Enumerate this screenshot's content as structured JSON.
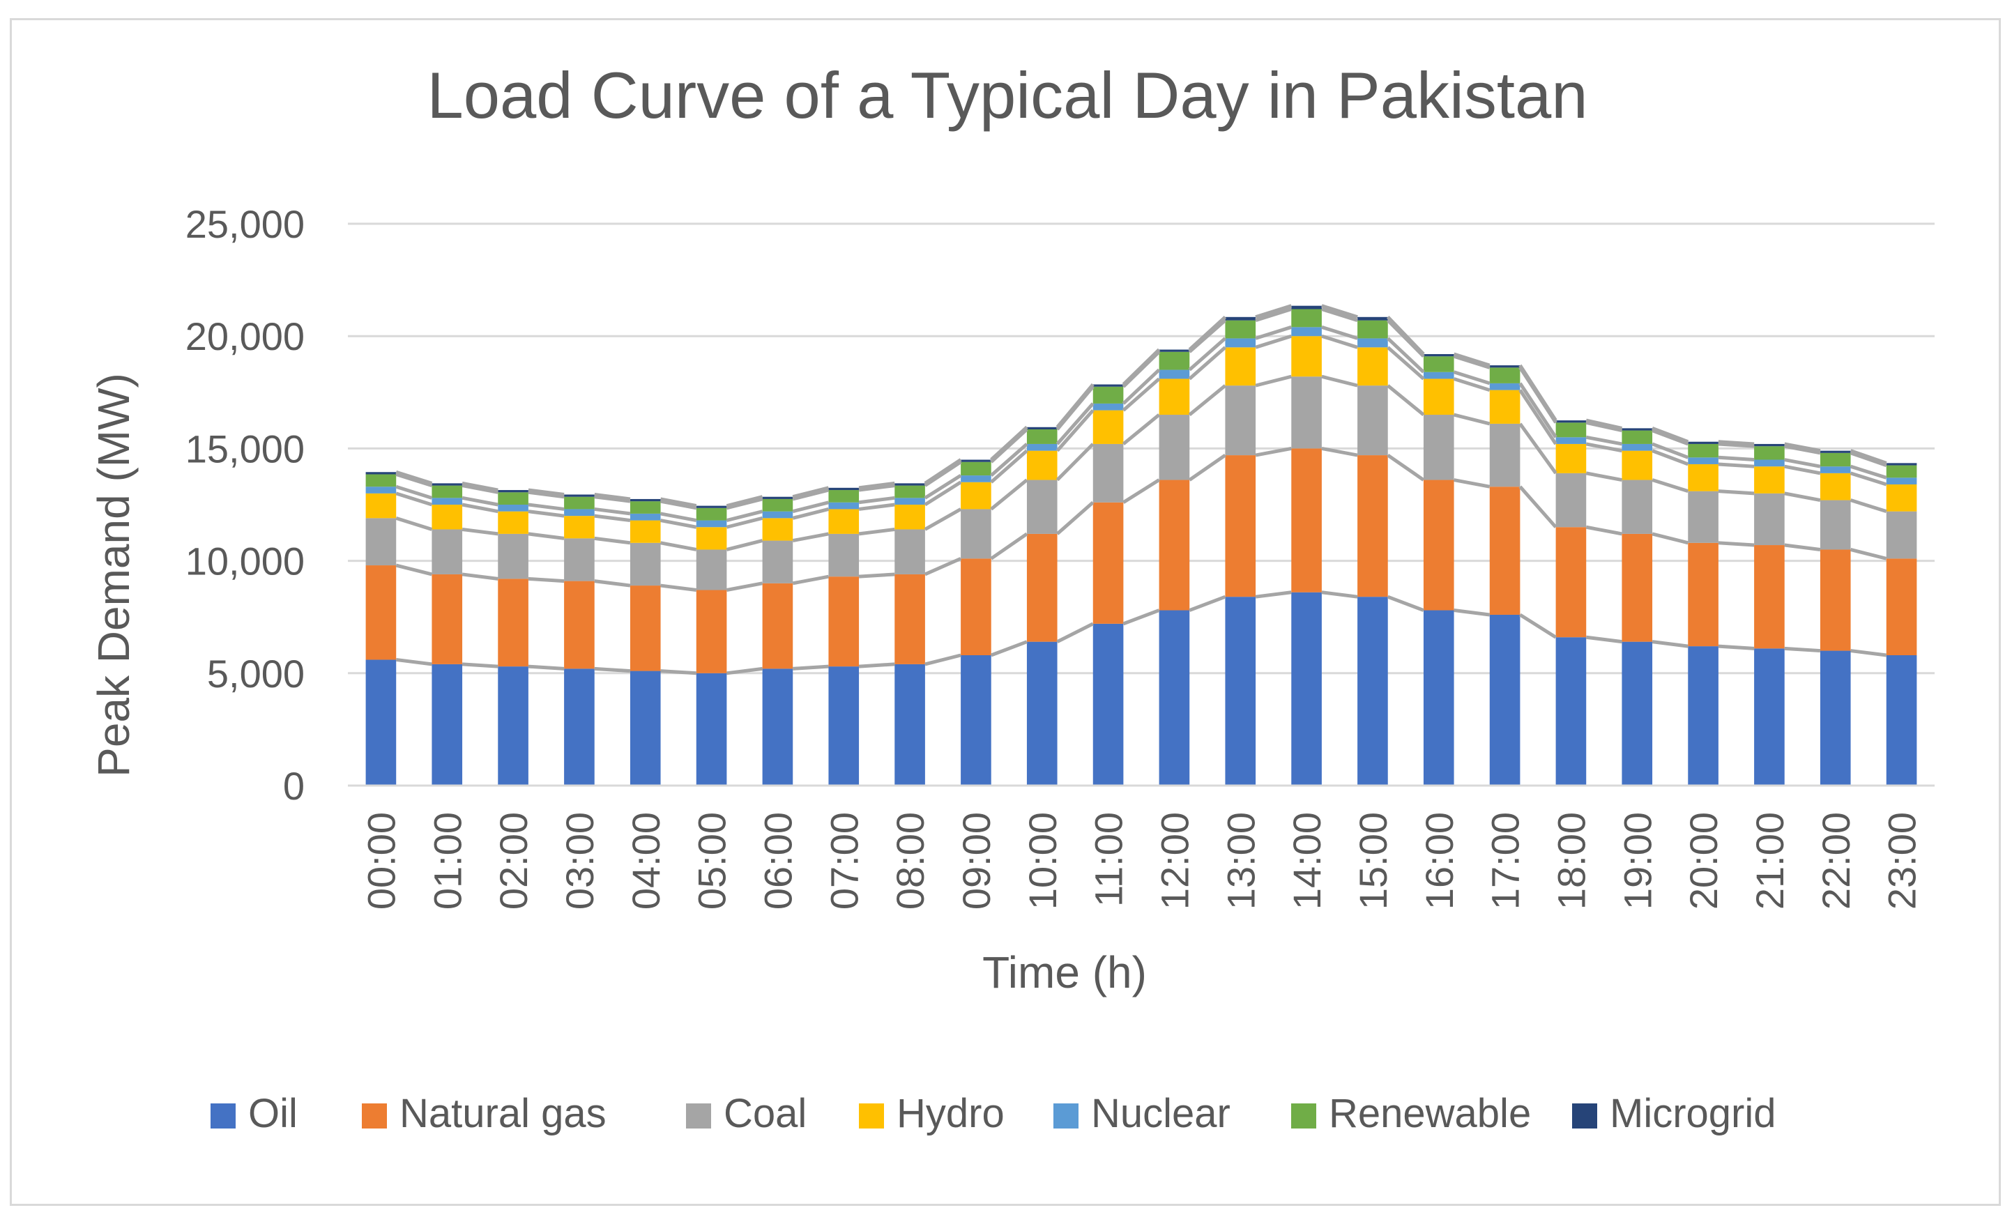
{
  "chart_data": {
    "type": "bar",
    "stacked": true,
    "title": "Load Curve of a Typical Day in Pakistan",
    "xlabel": "Time (h)",
    "ylabel": "Peak Demand (MW)",
    "ylim": [
      0,
      25000
    ],
    "yticks": [
      0,
      5000,
      10000,
      15000,
      20000,
      25000
    ],
    "ytick_labels": [
      "0",
      "5,000",
      "10,000",
      "15,000",
      "20,000",
      "25,000"
    ],
    "grid": true,
    "legend_position": "bottom",
    "categories": [
      "00:00",
      "01:00",
      "02:00",
      "03:00",
      "04:00",
      "05:00",
      "06:00",
      "07:00",
      "08:00",
      "09:00",
      "10:00",
      "11:00",
      "12:00",
      "13:00",
      "14:00",
      "15:00",
      "16:00",
      "17:00",
      "18:00",
      "19:00",
      "20:00",
      "21:00",
      "22:00",
      "23:00"
    ],
    "series": [
      {
        "name": "Oil",
        "color": "#4472c4",
        "values": [
          5600,
          5400,
          5300,
          5200,
          5100,
          5000,
          5200,
          5300,
          5400,
          5800,
          6400,
          7200,
          7800,
          8400,
          8600,
          8400,
          7800,
          7600,
          6600,
          6400,
          6200,
          6100,
          6000,
          5800
        ]
      },
      {
        "name": "Natural gas",
        "color": "#ed7d31",
        "values": [
          4200,
          4000,
          3900,
          3900,
          3800,
          3700,
          3800,
          4000,
          4000,
          4300,
          4800,
          5400,
          5800,
          6300,
          6400,
          6300,
          5800,
          5700,
          4900,
          4800,
          4600,
          4600,
          4500,
          4300
        ]
      },
      {
        "name": "Coal",
        "color": "#a5a5a5",
        "values": [
          2100,
          2000,
          2000,
          1900,
          1900,
          1800,
          1900,
          1900,
          2000,
          2200,
          2400,
          2600,
          2900,
          3100,
          3200,
          3100,
          2900,
          2800,
          2400,
          2400,
          2300,
          2300,
          2200,
          2100
        ]
      },
      {
        "name": "Hydro",
        "color": "#ffc000",
        "values": [
          1100,
          1100,
          1000,
          1000,
          1000,
          1000,
          1000,
          1100,
          1100,
          1200,
          1300,
          1500,
          1600,
          1700,
          1800,
          1700,
          1600,
          1500,
          1300,
          1300,
          1200,
          1200,
          1200,
          1200
        ]
      },
      {
        "name": "Nuclear",
        "color": "#5b9bd5",
        "values": [
          300,
          300,
          300,
          300,
          300,
          300,
          300,
          300,
          300,
          300,
          300,
          300,
          400,
          400,
          400,
          400,
          300,
          300,
          300,
          300,
          300,
          300,
          300,
          300
        ]
      },
      {
        "name": "Renewable",
        "color": "#70ad47",
        "values": [
          550,
          550,
          550,
          550,
          550,
          550,
          550,
          550,
          550,
          600,
          650,
          750,
          800,
          800,
          800,
          800,
          700,
          700,
          650,
          600,
          600,
          600,
          600,
          550
        ]
      },
      {
        "name": "Microgrid",
        "color": "#264478",
        "values": [
          100,
          100,
          100,
          100,
          100,
          100,
          100,
          100,
          100,
          100,
          100,
          100,
          100,
          150,
          150,
          150,
          100,
          100,
          100,
          100,
          100,
          100,
          100,
          100
        ]
      }
    ]
  }
}
